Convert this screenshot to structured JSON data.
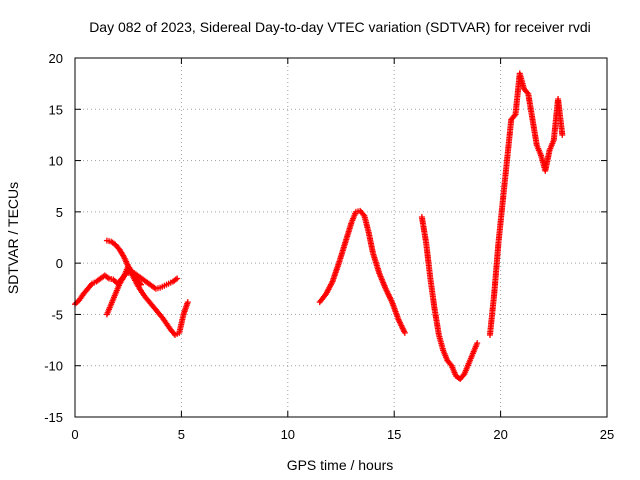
{
  "chart_data": {
    "type": "scatter",
    "title": "Day 082 of 2023, Sidereal Day-to-day VTEC variation (SDTVAR) for receiver rvdi",
    "xlabel": "GPS time / hours",
    "ylabel": "SDTVAR / TECUs",
    "xlim": [
      0,
      25
    ],
    "ylim": [
      -15,
      20
    ],
    "xticks": [
      0,
      5,
      10,
      15,
      20,
      25
    ],
    "yticks": [
      -15,
      -10,
      -5,
      0,
      5,
      10,
      15,
      20
    ],
    "xtick_labels": [
      "0",
      "5",
      "10",
      "15",
      "20",
      "25"
    ],
    "ytick_labels": [
      "-15",
      "-10",
      "-5",
      "0",
      "5",
      "10",
      "15",
      "20"
    ],
    "grid": true,
    "marker": "plus",
    "color": "#ff0000",
    "series": [
      {
        "x": [
          0.0,
          0.2,
          0.4,
          0.6,
          0.8,
          1.0,
          1.2,
          1.4,
          1.6,
          1.8,
          2.0,
          2.2,
          2.4,
          2.6,
          2.8,
          3.0,
          3.2,
          3.4,
          3.6,
          3.8,
          4.0,
          4.2,
          4.4,
          4.6,
          4.8
        ],
        "y": [
          -4.0,
          -3.6,
          -3.0,
          -2.5,
          -2.0,
          -1.8,
          -1.5,
          -1.2,
          -1.5,
          -1.6,
          -2.0,
          -1.5,
          -1.0,
          -0.9,
          -1.0,
          -1.3,
          -1.6,
          -1.9,
          -2.2,
          -2.5,
          -2.4,
          -2.2,
          -2.0,
          -1.8,
          -1.5
        ]
      },
      {
        "x": [
          1.5,
          1.7,
          1.9,
          2.1,
          2.3,
          2.5,
          2.7,
          2.9,
          3.1,
          3.3,
          3.5,
          3.7,
          3.9,
          4.1,
          4.3,
          4.5,
          4.7,
          4.9,
          5.1,
          5.3
        ],
        "y": [
          2.2,
          2.1,
          1.8,
          1.3,
          0.6,
          -0.3,
          -1.2,
          -2.0,
          -2.7,
          -3.3,
          -3.8,
          -4.3,
          -4.8,
          -5.3,
          -5.9,
          -6.5,
          -7.0,
          -6.8,
          -5.0,
          -3.8
        ]
      },
      {
        "x": [
          1.5,
          1.7,
          1.9,
          2.1,
          2.3,
          2.5,
          2.7,
          2.9,
          3.1
        ],
        "y": [
          -5.0,
          -4.0,
          -3.0,
          -2.0,
          -1.3,
          -0.3,
          -0.9,
          -1.6,
          -2.1
        ]
      },
      {
        "x": [
          11.5,
          11.8,
          12.1,
          12.4,
          12.7,
          13.0,
          13.2,
          13.4,
          13.6,
          13.8,
          14.0,
          14.3,
          14.6,
          14.9,
          15.2,
          15.5
        ],
        "y": [
          -3.8,
          -3.0,
          -1.8,
          0.0,
          2.0,
          4.0,
          5.0,
          5.1,
          4.6,
          3.0,
          1.0,
          -1.0,
          -2.5,
          -3.8,
          -5.5,
          -6.8
        ]
      },
      {
        "x": [
          16.3,
          16.5,
          16.7,
          16.9,
          17.1,
          17.3,
          17.5,
          17.7,
          17.9,
          18.1,
          18.3,
          18.5,
          18.7,
          18.9
        ],
        "y": [
          4.5,
          2.0,
          -1.5,
          -4.5,
          -7.0,
          -8.5,
          -9.5,
          -10.0,
          -11.0,
          -11.3,
          -10.8,
          -9.8,
          -8.8,
          -7.8
        ]
      },
      {
        "x": [
          19.5,
          19.7,
          19.9,
          20.1,
          20.3,
          20.5,
          20.7,
          20.9,
          21.1,
          21.3,
          21.5,
          21.7,
          21.9,
          22.1,
          22.3,
          22.5,
          22.7,
          22.9
        ],
        "y": [
          -7.0,
          -3.0,
          2.0,
          6.0,
          10.0,
          14.0,
          14.5,
          18.5,
          17.0,
          16.5,
          14.0,
          11.5,
          10.5,
          9.0,
          11.0,
          12.0,
          16.0,
          12.5
        ]
      }
    ]
  }
}
